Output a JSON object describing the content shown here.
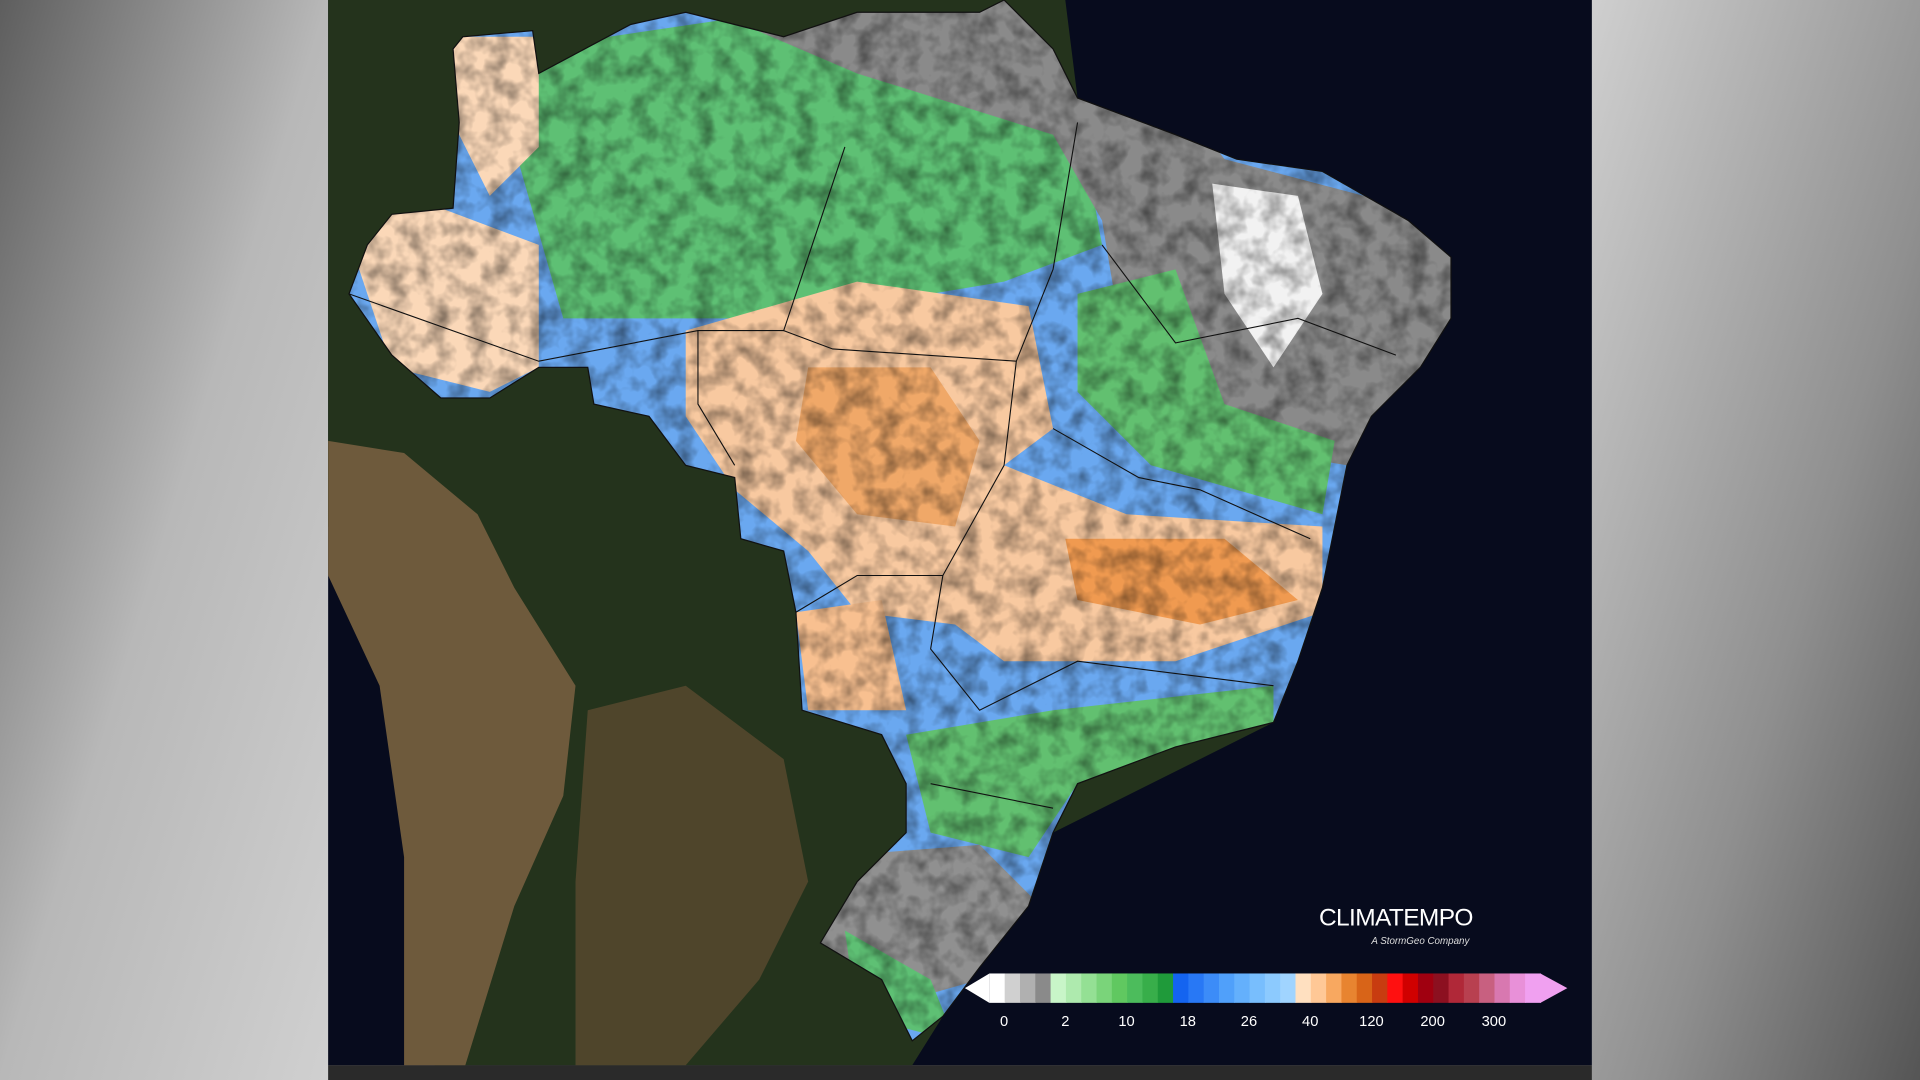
{
  "logo": {
    "name": "CLIMATEMPO",
    "tagline": "A StormGeo Company"
  },
  "legend": {
    "ticks": [
      0,
      2,
      10,
      18,
      26,
      40,
      120,
      200,
      300
    ],
    "colors": [
      "#ffffff",
      "#d0d0d0",
      "#b0b0b0",
      "#8a8a8a",
      "#c8f5c8",
      "#aeeaae",
      "#94e094",
      "#7ad47a",
      "#60c860",
      "#4cbc5c",
      "#38ae4a",
      "#1f9a3a",
      "#1464f0",
      "#2878f5",
      "#3c8cf8",
      "#50a0fa",
      "#64b0fc",
      "#78befd",
      "#8ccafe",
      "#a0d4ff",
      "#ffe0c0",
      "#ffc896",
      "#f8a860",
      "#e88430",
      "#d86418",
      "#c83c10",
      "#ff1010",
      "#d00000",
      "#a00010",
      "#8c1020",
      "#b02838",
      "#b84050",
      "#c86080",
      "#d878b0",
      "#e890d8",
      "#f0a0f0"
    ]
  }
}
